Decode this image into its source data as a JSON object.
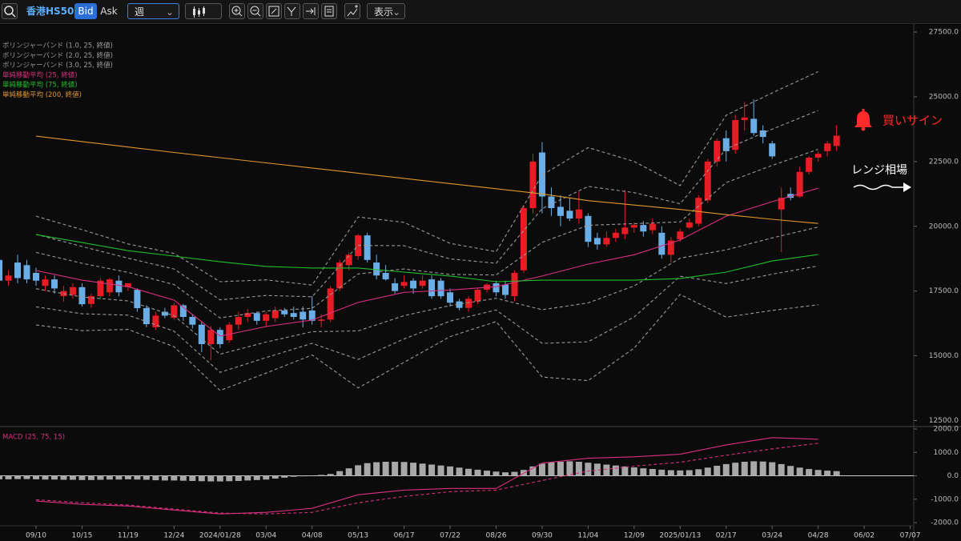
{
  "toolbar": {
    "symbol": "香港HS50",
    "bid": "Bid",
    "ask": "Ask",
    "period": "週",
    "view": "表示"
  },
  "chart_data": [
    {
      "type": "candlestick",
      "categories": [
        null,
        null,
        null,
        null,
        "09/10",
        null,
        null,
        null,
        null,
        "10/15",
        null,
        null,
        null,
        null,
        "11/19",
        null,
        null,
        null,
        null,
        "12/24",
        null,
        null,
        null,
        null,
        "2024/01/28",
        null,
        null,
        null,
        null,
        "03/04",
        null,
        null,
        null,
        null,
        "04/08",
        null,
        null,
        null,
        null,
        "05/13",
        null,
        null,
        null,
        null,
        "06/17",
        null,
        null,
        null,
        null,
        "07/22",
        null,
        null,
        null,
        null,
        "08/26",
        null,
        null,
        null,
        null,
        "09/30",
        null,
        null,
        null,
        null,
        "11/04",
        null,
        null,
        null,
        null,
        "12/09",
        null,
        null,
        null,
        null,
        "2025/01/13",
        null,
        null,
        null,
        null,
        "02/17",
        null,
        null,
        null,
        null,
        "03/24",
        null,
        null,
        null,
        null,
        "04/28",
        null,
        null,
        null,
        null,
        "06/02",
        null,
        null,
        null,
        null,
        "07/07"
      ],
      "open": [
        18700,
        17900,
        18600,
        18500,
        18200,
        17700,
        17950,
        17300,
        17350,
        17650,
        17000,
        17300,
        17450,
        17900,
        17650,
        17550,
        16840,
        16100,
        16700,
        16470,
        16950,
        16500,
        16200,
        15450,
        16000,
        15600,
        16200,
        16500,
        16650,
        16350,
        16450,
        16750,
        16650,
        16700,
        16750,
        16350,
        16400,
        17600,
        18500,
        18850,
        19650,
        18600,
        18200,
        17800,
        17700,
        17900,
        17700,
        17950,
        17900,
        17450,
        17100,
        16850,
        17100,
        17550,
        17800,
        17750,
        17300,
        18300,
        20700,
        22850,
        21150,
        20750,
        20600,
        20300,
        20400,
        19550,
        19300,
        19550,
        19700,
        19950,
        20050,
        19850,
        19750,
        18900,
        19500,
        19950,
        20100,
        21000,
        22500,
        23400,
        22950,
        24100,
        24150,
        23700,
        23200,
        20650,
        21250,
        21150,
        22100,
        22650,
        22900,
        23100,
        null,
        null,
        null,
        null,
        null,
        null,
        null,
        null
      ],
      "high": [
        18900,
        18300,
        18900,
        18700,
        18400,
        18100,
        18100,
        17700,
        17800,
        17800,
        17400,
        18000,
        18000,
        18100,
        17800,
        17600,
        16950,
        16700,
        16850,
        17050,
        17000,
        16600,
        16300,
        16150,
        16100,
        16300,
        16700,
        16800,
        16700,
        16700,
        16900,
        16850,
        16900,
        16900,
        17300,
        16600,
        17700,
        18700,
        19000,
        19700,
        19750,
        18900,
        18500,
        18000,
        18100,
        18000,
        18100,
        18100,
        18000,
        17600,
        17200,
        17300,
        17600,
        17800,
        17900,
        17900,
        18300,
        20800,
        22800,
        23250,
        21500,
        21200,
        21100,
        21350,
        20500,
        19750,
        19800,
        19900,
        21400,
        20150,
        20200,
        20300,
        20000,
        19600,
        19900,
        20300,
        21200,
        22600,
        23400,
        23700,
        24300,
        24800,
        24900,
        23900,
        23300,
        21500,
        21500,
        22300,
        22700,
        22900,
        23300,
        23900,
        null,
        null,
        null,
        null,
        null,
        null,
        null,
        null
      ],
      "low": [
        17700,
        17700,
        17800,
        17800,
        17700,
        17500,
        17400,
        17100,
        17200,
        16900,
        16850,
        17200,
        17300,
        17300,
        17500,
        16700,
        16100,
        16000,
        16450,
        16400,
        16350,
        16050,
        15140,
        14830,
        15300,
        15500,
        16000,
        16300,
        16200,
        16100,
        16300,
        16500,
        16400,
        16100,
        16200,
        16100,
        16300,
        17500,
        18300,
        18700,
        18600,
        17950,
        17900,
        17400,
        17600,
        17400,
        17600,
        17200,
        17200,
        16900,
        16750,
        16700,
        17000,
        17450,
        17300,
        17200,
        17100,
        18200,
        20500,
        20500,
        20400,
        20000,
        20200,
        20100,
        19200,
        19100,
        19200,
        19400,
        19500,
        19750,
        19600,
        19700,
        18750,
        18600,
        19400,
        19900,
        20000,
        20900,
        22300,
        22500,
        22800,
        23700,
        23500,
        23200,
        22600,
        19000,
        21000,
        21100,
        22000,
        22500,
        22700,
        22900,
        null,
        null,
        null,
        null,
        null,
        null,
        null,
        null
      ],
      "close": [
        17900,
        18100,
        18000,
        17950,
        17900,
        17950,
        17600,
        17500,
        17650,
        16990,
        17300,
        17900,
        17950,
        17450,
        17800,
        16840,
        16220,
        16550,
        16550,
        16950,
        16500,
        16200,
        15450,
        16000,
        15450,
        16200,
        16500,
        16650,
        16350,
        16600,
        16750,
        16600,
        16500,
        16400,
        16350,
        16400,
        17600,
        18600,
        18900,
        19650,
        18700,
        18100,
        17950,
        17500,
        17850,
        17600,
        17900,
        17300,
        17300,
        17050,
        16850,
        17200,
        17550,
        17750,
        17450,
        17350,
        18200,
        20700,
        22500,
        21150,
        20700,
        20400,
        20300,
        20650,
        19400,
        19300,
        19550,
        19750,
        19950,
        20050,
        19800,
        20100,
        18900,
        19450,
        19800,
        20150,
        21100,
        22500,
        23300,
        22900,
        24100,
        24200,
        23600,
        23450,
        22700,
        21100,
        21100,
        22100,
        22650,
        22800,
        23200,
        23500,
        null,
        null,
        null,
        null,
        null,
        null,
        null,
        null
      ],
      "up_color": "#e81c24",
      "down_color": "#6aaee8",
      "ylim": [
        12360,
        27810
      ],
      "yticks": [
        {
          "value": 12500,
          "label": "12500.0"
        },
        {
          "value": 15000,
          "label": "15000.0"
        },
        {
          "value": 17500,
          "label": "17500.0"
        },
        {
          "value": 20000,
          "label": "20000.0"
        },
        {
          "value": 22500,
          "label": "22500.0"
        },
        {
          "value": 25000,
          "label": "25000.0"
        },
        {
          "value": 27500,
          "label": "27500.0"
        }
      ],
      "annotations": [
        {
          "text": "買いサイン",
          "color": "#ff2a2a"
        },
        {
          "text": "レンジ相場",
          "color": "#ffffff"
        }
      ]
    },
    {
      "type": "line",
      "x": [
        "09/10",
        "10/15",
        "11/19",
        "12/24",
        "2024/01/28",
        "03/04",
        "04/08",
        "05/13",
        "06/17",
        "07/22",
        "08/26",
        "09/30",
        "11/04",
        "12/09",
        "2025/01/13",
        "02/17",
        "03/24",
        "04/28"
      ],
      "series": [
        {
          "name": "ボリンジャーバンド (1.0, 25, 終値)",
          "color": "#9a9a9a",
          "dashed": true,
          "upper": [
            18990,
            18570,
            18220,
            17750,
            16460,
            16730,
            16830,
            18160,
            18350,
            18140,
            18120,
            19380,
            20040,
            20100,
            20170,
            21690,
            22350,
            22970
          ],
          "lower": [
            17590,
            17270,
            17120,
            16550,
            15060,
            15530,
            15930,
            15960,
            16550,
            16940,
            17220,
            16780,
            17040,
            17700,
            18770,
            19090,
            19550,
            19970
          ]
        },
        {
          "name": "ボリンジャーバンド (2.0, 25, 終値)",
          "color": "#9a9a9a",
          "dashed": true,
          "upper": [
            19690,
            19220,
            18770,
            18350,
            17160,
            17330,
            17280,
            19260,
            19250,
            18740,
            18570,
            20680,
            21540,
            21300,
            20870,
            22990,
            23750,
            24470
          ],
          "lower": [
            16890,
            16620,
            16570,
            15950,
            14360,
            14930,
            15480,
            14860,
            15650,
            16340,
            16770,
            15480,
            15540,
            16500,
            18070,
            17790,
            18150,
            18470
          ]
        },
        {
          "name": "ボリンジャーバンド (3.0, 25, 終値)",
          "color": "#9a9a9a",
          "dashed": true,
          "upper": [
            20390,
            19870,
            19320,
            18950,
            17860,
            17930,
            17730,
            20360,
            20150,
            19340,
            19020,
            21980,
            23040,
            22500,
            21570,
            24290,
            25150,
            25970
          ],
          "lower": [
            16190,
            15970,
            16020,
            15350,
            13660,
            14330,
            15030,
            13760,
            14750,
            15740,
            16320,
            14180,
            14040,
            15300,
            17370,
            16490,
            16750,
            16970
          ]
        },
        {
          "name": "単純移動平均 (25, 終値)",
          "color": "#d8307e",
          "values": [
            18290,
            17920,
            17670,
            17150,
            15760,
            16130,
            16380,
            17060,
            17450,
            17540,
            17670,
            18080,
            18540,
            18900,
            19470,
            20390,
            20950,
            21470
          ]
        },
        {
          "name": "単純移動平均 (75, 終値)",
          "color": "#1fbf2a",
          "values": [
            19680,
            19370,
            19060,
            18850,
            18630,
            18450,
            18390,
            18390,
            18230,
            18080,
            17860,
            17920,
            17920,
            17920,
            17980,
            18230,
            18660,
            18910
          ]
        },
        {
          "name": "単純移動平均 (200, 終値)",
          "color": "#e0962e",
          "values": [
            23480,
            23270,
            23060,
            22850,
            22650,
            22450,
            22250,
            22050,
            21850,
            21650,
            21450,
            21250,
            20990,
            20820,
            20650,
            20450,
            20270,
            20110
          ]
        }
      ]
    },
    {
      "type": "macd",
      "title": "MACD (25, 75, 15)",
      "title_color": "#d8307e",
      "histogram": {
        "color": "#a8a8a8",
        "values": [
          -150,
          -150,
          -140,
          -140,
          -150,
          -160,
          -160,
          -170,
          -170,
          -180,
          -180,
          -170,
          -160,
          -160,
          -150,
          -160,
          -170,
          -190,
          -200,
          -200,
          -210,
          -220,
          -230,
          -240,
          -240,
          -230,
          -220,
          -200,
          -180,
          -160,
          -120,
          -80,
          -40,
          -20,
          10,
          40,
          80,
          200,
          320,
          450,
          540,
          580,
          600,
          600,
          590,
          560,
          520,
          480,
          440,
          400,
          350,
          300,
          260,
          220,
          180,
          150,
          170,
          250,
          400,
          520,
          580,
          600,
          620,
          600,
          560,
          520,
          480,
          440,
          400,
          360,
          320,
          290,
          260,
          240,
          230,
          240,
          280,
          350,
          430,
          500,
          560,
          600,
          620,
          610,
          580,
          500,
          420,
          350,
          290,
          250,
          220,
          200,
          null,
          null,
          null,
          null,
          null,
          null,
          null,
          null
        ]
      },
      "x": [
        "09/10",
        "10/15",
        "11/19",
        "12/24",
        "2024/01/28",
        "03/04",
        "04/08",
        "05/13",
        "06/17",
        "07/22",
        "08/26",
        "09/30",
        "11/04",
        "12/09",
        "2025/01/13",
        "02/17",
        "03/24",
        "04/28"
      ],
      "series": [
        {
          "color": "#d8307e",
          "values": [
            -1080,
            -1220,
            -1290,
            -1460,
            -1630,
            -1560,
            -1390,
            -810,
            -610,
            -540,
            -540,
            540,
            750,
            810,
            920,
            1320,
            1630,
            1560
          ]
        },
        {
          "color": "#d8307e",
          "dashed": true,
          "values": [
            -1020,
            -1150,
            -1250,
            -1420,
            -1590,
            -1630,
            -1560,
            -1150,
            -880,
            -680,
            -610,
            -200,
            200,
            410,
            580,
            880,
            1150,
            1390
          ]
        }
      ],
      "ylim": [
        -2100,
        2000
      ],
      "yticks": [
        {
          "value": -2000,
          "label": "-2000.0"
        },
        {
          "value": -1000,
          "label": "-1000.0"
        },
        {
          "value": 0,
          "label": "0.0"
        },
        {
          "value": 1000,
          "label": "1000.0"
        },
        {
          "value": 2000,
          "label": "2000.0"
        }
      ]
    }
  ]
}
